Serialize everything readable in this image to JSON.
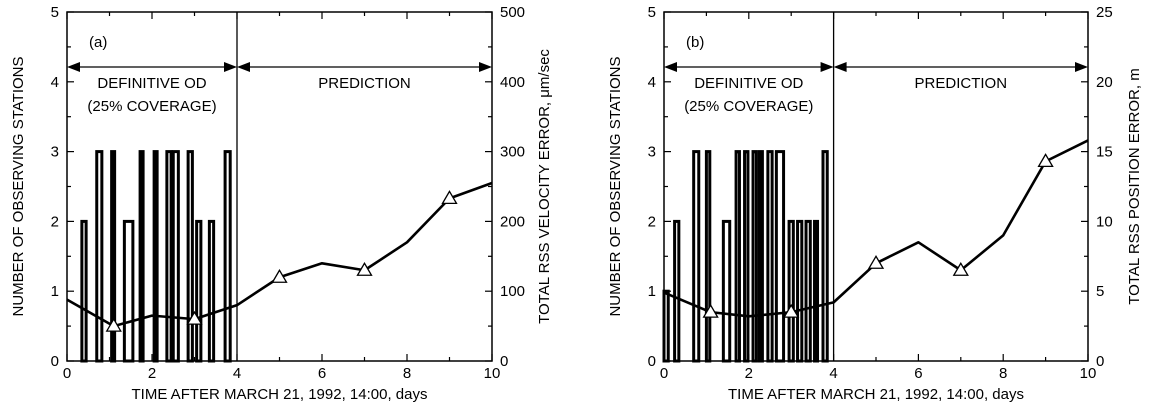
{
  "chart_data": [
    {
      "type": "bar+line",
      "panel_label": "(a)",
      "xlabel": "TIME AFTER MARCH 21, 1992, 14:00, days",
      "ylabel_left": "NUMBER OF OBSERVING STATIONS",
      "ylabel_right": "TOTAL RSS VELOCITY ERROR, μm/sec",
      "xlim": [
        0,
        10
      ],
      "ylim_left": [
        0,
        5
      ],
      "ylim_right": [
        0,
        500
      ],
      "x_ticks": [
        "0",
        "2",
        "4",
        "6",
        "8",
        "10"
      ],
      "y_left_ticks": [
        "0",
        "1",
        "2",
        "3",
        "4",
        "5"
      ],
      "y_right_ticks": [
        "0",
        "100",
        "200",
        "300",
        "400",
        "500"
      ],
      "divider_x": 4,
      "regions": [
        {
          "label_lines": [
            "DEFINITIVE OD",
            "(25% COVERAGE)"
          ],
          "from": 0,
          "to": 4
        },
        {
          "label_lines": [
            "PREDICTION"
          ],
          "from": 4,
          "to": 10
        }
      ],
      "station_bars": [
        {
          "start": 0.35,
          "end": 0.45,
          "value": 2
        },
        {
          "start": 0.7,
          "end": 0.82,
          "value": 3
        },
        {
          "start": 1.05,
          "end": 1.1,
          "value": 3
        },
        {
          "start": 1.35,
          "end": 1.55,
          "value": 2
        },
        {
          "start": 1.72,
          "end": 1.78,
          "value": 3
        },
        {
          "start": 2.05,
          "end": 2.12,
          "value": 3
        },
        {
          "start": 2.35,
          "end": 2.45,
          "value": 3
        },
        {
          "start": 2.5,
          "end": 2.62,
          "value": 3
        },
        {
          "start": 2.85,
          "end": 2.95,
          "value": 3
        },
        {
          "start": 3.05,
          "end": 3.15,
          "value": 2
        },
        {
          "start": 3.35,
          "end": 3.45,
          "value": 2
        },
        {
          "start": 3.72,
          "end": 3.84,
          "value": 3
        }
      ],
      "error_line": {
        "x": [
          0,
          1.1,
          2.0,
          3.0,
          4.0,
          5.0,
          6.0,
          7.0,
          8.0,
          9.0,
          10.0
        ],
        "y": [
          88,
          50,
          65,
          60,
          80,
          120,
          140,
          130,
          170,
          233,
          255
        ],
        "markers": [
          1.1,
          3.0,
          5.0,
          7.0,
          9.0
        ]
      }
    },
    {
      "type": "bar+line",
      "panel_label": "(b)",
      "xlabel": "TIME AFTER MARCH 21, 1992, 14:00, days",
      "ylabel_left": "NUMBER OF OBSERVING STATIONS",
      "ylabel_right": "TOTAL RSS POSITION ERROR, m",
      "xlim": [
        0,
        10
      ],
      "ylim_left": [
        0,
        5
      ],
      "ylim_right": [
        0,
        25
      ],
      "x_ticks": [
        "0",
        "2",
        "4",
        "6",
        "8",
        "10"
      ],
      "y_left_ticks": [
        "0",
        "1",
        "2",
        "3",
        "4",
        "5"
      ],
      "y_right_ticks": [
        "0",
        "5",
        "10",
        "15",
        "20",
        "25"
      ],
      "divider_x": 4,
      "regions": [
        {
          "label_lines": [
            "DEFINITIVE OD",
            "(25% COVERAGE)"
          ],
          "from": 0,
          "to": 4
        },
        {
          "label_lines": [
            "PREDICTION"
          ],
          "from": 4,
          "to": 10
        }
      ],
      "station_bars": [
        {
          "start": 0.0,
          "end": 0.1,
          "value": 1
        },
        {
          "start": 0.25,
          "end": 0.35,
          "value": 2
        },
        {
          "start": 0.7,
          "end": 0.82,
          "value": 3
        },
        {
          "start": 1.0,
          "end": 1.08,
          "value": 3
        },
        {
          "start": 1.4,
          "end": 1.55,
          "value": 2
        },
        {
          "start": 1.7,
          "end": 1.78,
          "value": 3
        },
        {
          "start": 1.9,
          "end": 1.98,
          "value": 3
        },
        {
          "start": 2.1,
          "end": 2.18,
          "value": 3
        },
        {
          "start": 2.25,
          "end": 2.32,
          "value": 3
        },
        {
          "start": 2.45,
          "end": 2.55,
          "value": 3
        },
        {
          "start": 2.65,
          "end": 2.82,
          "value": 3
        },
        {
          "start": 2.95,
          "end": 3.05,
          "value": 2
        },
        {
          "start": 3.15,
          "end": 3.25,
          "value": 2
        },
        {
          "start": 3.35,
          "end": 3.45,
          "value": 2
        },
        {
          "start": 3.55,
          "end": 3.62,
          "value": 2
        },
        {
          "start": 3.75,
          "end": 3.85,
          "value": 3
        }
      ],
      "error_line": {
        "x": [
          0,
          1.1,
          2.0,
          3.0,
          4.0,
          5.0,
          6.0,
          7.0,
          8.0,
          9.0,
          10.0
        ],
        "y": [
          4.9,
          3.5,
          3.2,
          3.5,
          4.2,
          7.0,
          8.5,
          6.5,
          9.0,
          14.3,
          15.8
        ],
        "markers": [
          1.1,
          3.0,
          5.0,
          7.0,
          9.0
        ]
      }
    }
  ]
}
